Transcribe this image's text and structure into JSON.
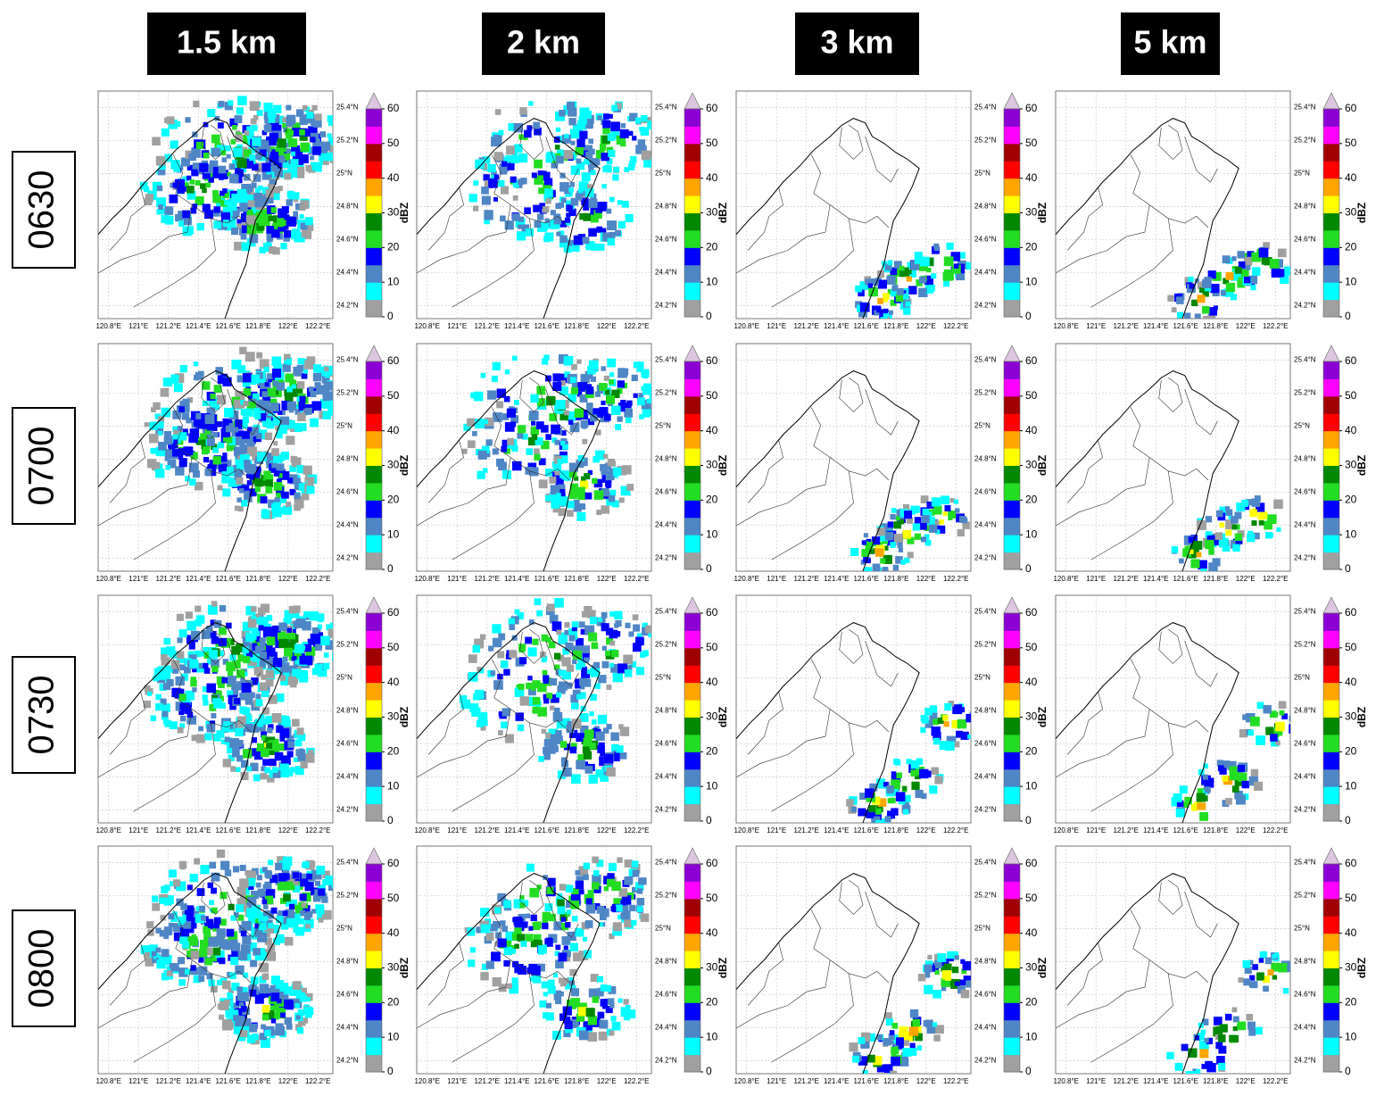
{
  "columns": [
    "1.5 km",
    "2 km",
    "3 km",
    "5 km"
  ],
  "rows": [
    "0630",
    "0700",
    "0730",
    "0800"
  ],
  "map": {
    "xlim": [
      120.73,
      122.3
    ],
    "ylim": [
      24.12,
      25.5
    ],
    "xticks": [
      {
        "value": 120.8,
        "label": "120.8°E"
      },
      {
        "value": 121,
        "label": "121°E"
      },
      {
        "value": 121.2,
        "label": "121.2°E"
      },
      {
        "value": 121.4,
        "label": "121.4°E"
      },
      {
        "value": 121.6,
        "label": "121.6°E"
      },
      {
        "value": 121.8,
        "label": "121.8°E"
      },
      {
        "value": 122,
        "label": "122°E"
      },
      {
        "value": 122.2,
        "label": "122.2°E"
      }
    ],
    "yticks": [
      {
        "value": 24.2,
        "label": "24.2°N"
      },
      {
        "value": 24.4,
        "label": "24.4°N"
      },
      {
        "value": 24.6,
        "label": "24.6°N"
      },
      {
        "value": 24.8,
        "label": "24.8°N"
      },
      {
        "value": 25,
        "label": "25°N"
      },
      {
        "value": 25.2,
        "label": "25.2°N"
      },
      {
        "value": 25.4,
        "label": "25.4°N"
      }
    ],
    "grid": true,
    "colorbar": {
      "label": "dBZ",
      "lim": [
        0,
        60
      ],
      "ticks": [
        0,
        10,
        20,
        30,
        40,
        50,
        60
      ],
      "colors": [
        "#a0a0a0",
        "#00ffff",
        "#4f86c6",
        "#0000ff",
        "#22dd22",
        "#008800",
        "#ffff00",
        "#ffa500",
        "#ff0000",
        "#a00000",
        "#ff00ff",
        "#8a00d4"
      ],
      "extend_color": "#dcc6e0"
    }
  }
}
